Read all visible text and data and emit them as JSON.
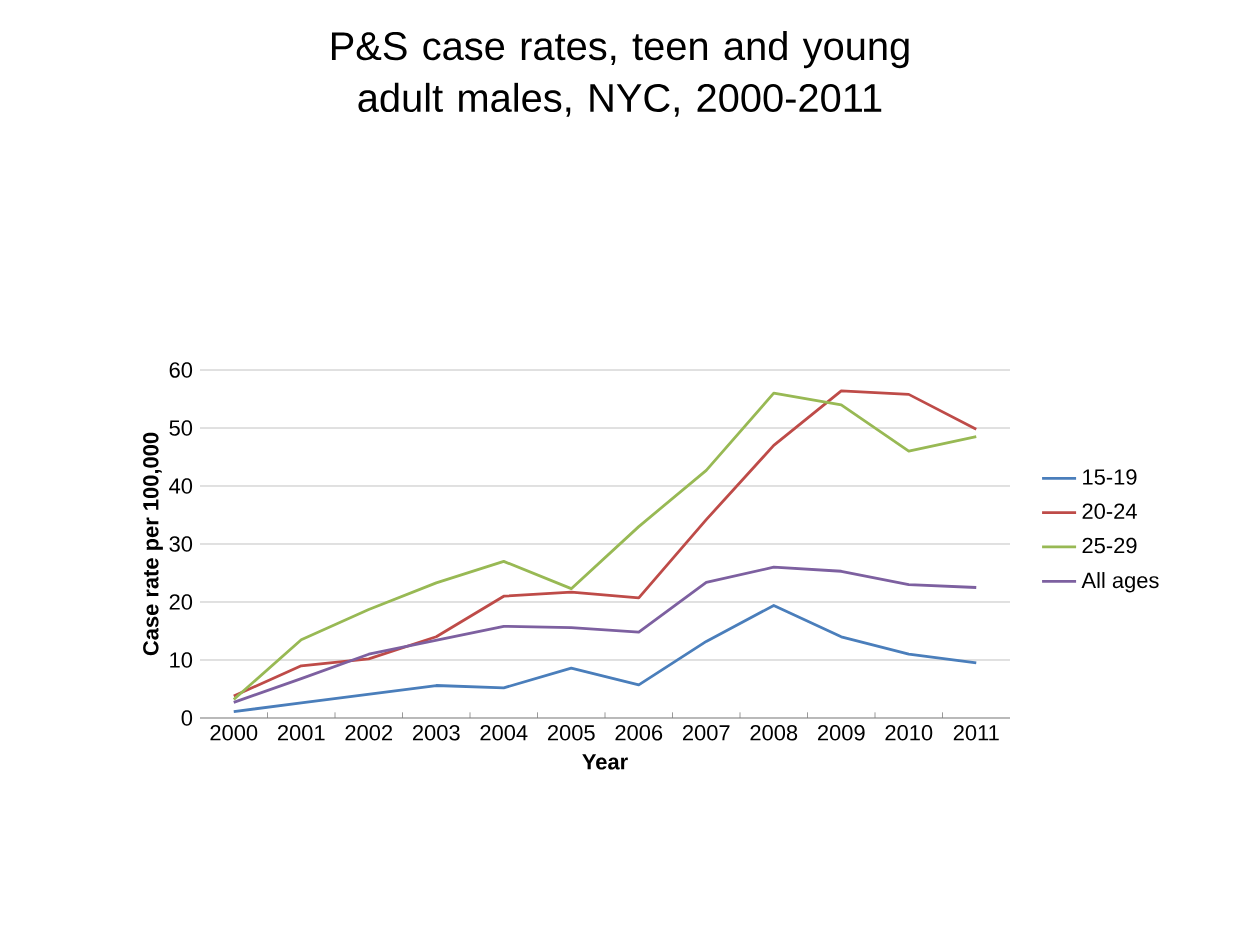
{
  "chart_data": {
    "type": "line",
    "title": "P&S case rates, teen and young adult males, NYC, 2000-2011",
    "xlabel": "Year",
    "ylabel": "Case rate per 100,000",
    "categories": [
      "2000",
      "2001",
      "2002",
      "2003",
      "2004",
      "2005",
      "2006",
      "2007",
      "2008",
      "2009",
      "2010",
      "2011"
    ],
    "series": [
      {
        "name": "15-19",
        "color": "#4a7ebb",
        "values": [
          1.1,
          2.6,
          4.1,
          5.6,
          5.2,
          8.6,
          5.7,
          13.2,
          19.4,
          14,
          11,
          9.5
        ]
      },
      {
        "name": "20-24",
        "color": "#be4b48",
        "values": [
          3.8,
          9,
          10.2,
          14,
          21,
          21.7,
          20.7,
          34.2,
          47,
          56.4,
          55.8,
          49.8
        ]
      },
      {
        "name": "25-29",
        "color": "#98b954",
        "values": [
          3.2,
          13.5,
          18.7,
          23.3,
          27,
          22.3,
          33,
          42.7,
          56,
          54,
          46,
          48.5
        ]
      },
      {
        "name": "All ages",
        "color": "#7d60a0",
        "values": [
          2.7,
          6.8,
          11,
          13.4,
          15.8,
          15.6,
          14.8,
          23.4,
          26,
          25.3,
          23,
          22.5
        ]
      }
    ],
    "ylim": [
      0,
      60
    ],
    "yticks": [
      0,
      10,
      20,
      30,
      40,
      50,
      60
    ],
    "grid": "y",
    "legend": "right",
    "marker": "none",
    "line_style": "solid"
  }
}
